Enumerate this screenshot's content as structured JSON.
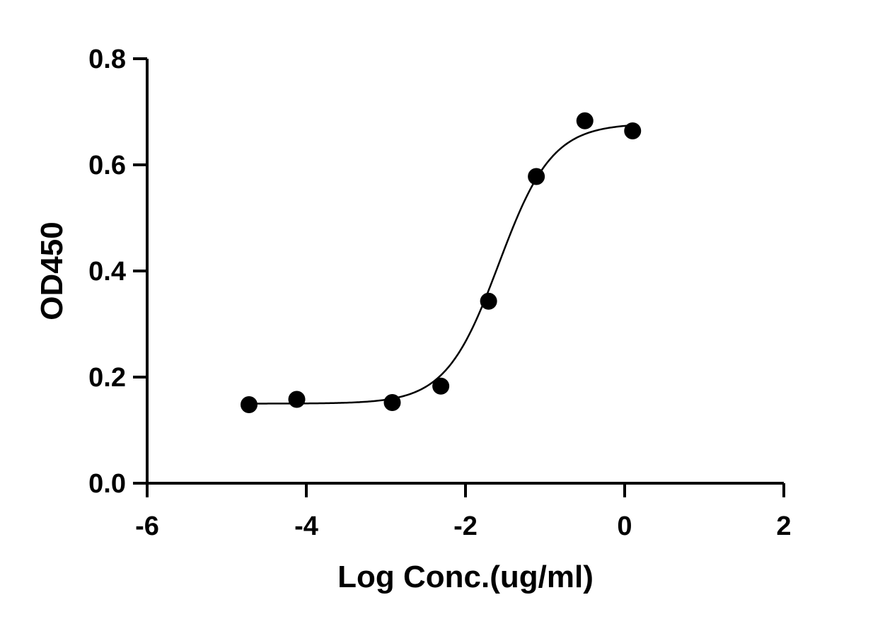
{
  "chart_data": {
    "type": "scatter",
    "title": "",
    "xlabel": "Log Conc.(ug/ml)",
    "ylabel": "OD450",
    "xlim": [
      -6,
      2
    ],
    "ylim": [
      0,
      0.8
    ],
    "x_ticks": [
      -6,
      -4,
      -2,
      0,
      2
    ],
    "x_tick_labels": [
      "-6",
      "-4",
      "-2",
      "0",
      "2"
    ],
    "y_ticks": [
      0,
      0.2,
      0.4,
      0.6,
      0.8
    ],
    "y_tick_labels": [
      "0.0",
      "0.2",
      "0.4",
      "0.6",
      "0.8"
    ],
    "grid": false,
    "legend": "none",
    "series": [
      {
        "points": [
          {
            "x": -4.72,
            "y": 0.148
          },
          {
            "x": -4.12,
            "y": 0.158
          },
          {
            "x": -2.92,
            "y": 0.152
          },
          {
            "x": -2.31,
            "y": 0.183
          },
          {
            "x": -1.71,
            "y": 0.343
          },
          {
            "x": -1.11,
            "y": 0.578
          },
          {
            "x": -0.5,
            "y": 0.683
          },
          {
            "x": 0.1,
            "y": 0.664
          }
        ],
        "fit": {
          "model": "4PL",
          "bottom": 0.15,
          "top": 0.678,
          "log_ec50": -1.58,
          "hill_slope": 1.3,
          "x_range": [
            -4.72,
            0.1
          ]
        }
      }
    ],
    "colors": {
      "marker": "#000000",
      "line": "#000000",
      "axis": "#000000"
    }
  }
}
